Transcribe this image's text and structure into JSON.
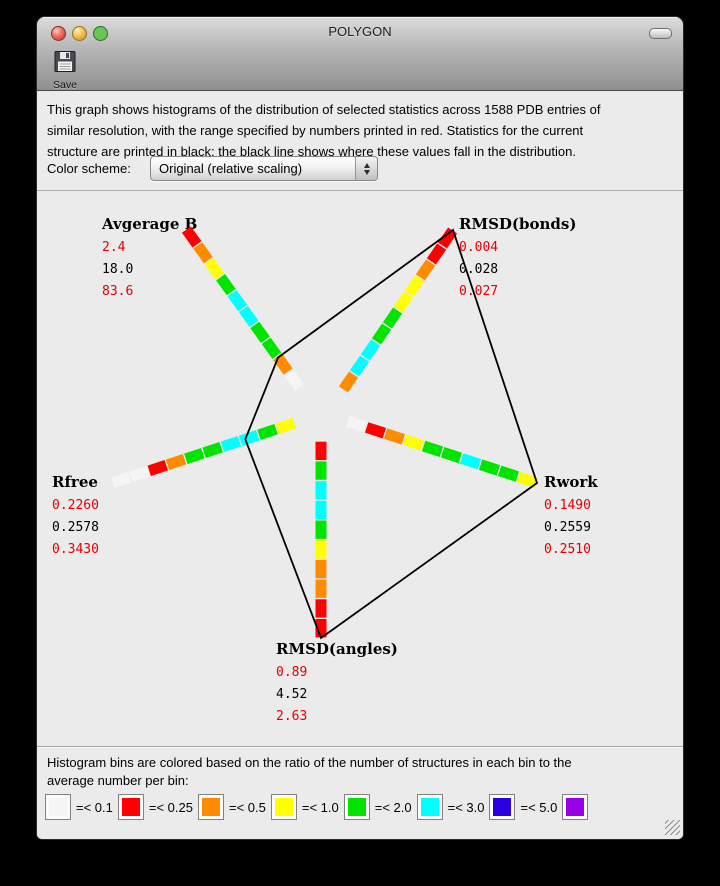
{
  "window": {
    "title": "POLYGON"
  },
  "toolbar": {
    "save_label": "Save"
  },
  "description": {
    "lines": [
      "This graph shows histograms of the distribution of selected statistics across 1588 PDB entries of",
      "similar resolution, with the range specified by numbers printed in red.  Statistics for the current",
      "structure are printed in black; the black line shows where these values fall in the distribution."
    ]
  },
  "color_scheme": {
    "label": "Color scheme:",
    "selected": "Original (relative scaling)"
  },
  "chart_data": {
    "type": "polygon-radar-histogram",
    "entries_count": 1588,
    "bin_colors": {
      "white": "#f5f5f5",
      "red": "#ff0000",
      "orange": "#ff8c00",
      "yellow": "#ffff00",
      "green": "#00e400",
      "cyan": "#00ffff",
      "blue": "#2a00e0",
      "purple": "#9a00e6"
    },
    "axes": [
      {
        "name": "Avgerage B",
        "min": 2.4,
        "value": 18.0,
        "max": 83.6,
        "min_str": "2.4",
        "value_str": "18.0",
        "max_str": "83.6",
        "bins_inner_to_tip": [
          "white",
          "orange",
          "green",
          "green",
          "cyan",
          "cyan",
          "green",
          "yellow",
          "orange",
          "red"
        ]
      },
      {
        "name": "RMSD(bonds)",
        "min": 0.004,
        "value": 0.028,
        "max": 0.027,
        "min_str": "0.004",
        "value_str": "0.028",
        "max_str": "0.027",
        "bins_inner_to_tip": [
          "orange",
          "cyan",
          "cyan",
          "green",
          "green",
          "yellow",
          "yellow",
          "orange",
          "red",
          "red"
        ]
      },
      {
        "name": "Rwork",
        "min": 0.149,
        "value": 0.2559,
        "max": 0.251,
        "min_str": "0.1490",
        "value_str": "0.2559",
        "max_str": "0.2510",
        "bins_inner_to_tip": [
          "white",
          "red",
          "orange",
          "yellow",
          "green",
          "green",
          "cyan",
          "green",
          "green",
          "yellow"
        ]
      },
      {
        "name": "RMSD(angles)",
        "min": 0.89,
        "value": 4.52,
        "max": 2.63,
        "min_str": "0.89",
        "value_str": "4.52",
        "max_str": "2.63",
        "bins_inner_to_tip": [
          "red",
          "green",
          "cyan",
          "cyan",
          "green",
          "yellow",
          "orange",
          "orange",
          "red",
          "red"
        ]
      },
      {
        "name": "Rfree",
        "min": 0.226,
        "value": 0.2578,
        "max": 0.343,
        "min_str": "0.2260",
        "value_str": "0.2578",
        "max_str": "0.3430",
        "bins_inner_to_tip": [
          "yellow",
          "green",
          "cyan",
          "cyan",
          "green",
          "green",
          "orange",
          "red",
          "white",
          "white"
        ]
      }
    ]
  },
  "legend": {
    "lines": [
      "Histogram bins are colored based on the ratio of the number of structures in each bin to the",
      "average number per bin:"
    ],
    "bins": [
      {
        "color": "#f5f5f5",
        "label": "=< 0.1"
      },
      {
        "color": "#ff0000",
        "label": "=< 0.25"
      },
      {
        "color": "#ff8c00",
        "label": "=< 0.5"
      },
      {
        "color": "#ffff00",
        "label": "=< 1.0"
      },
      {
        "color": "#00e400",
        "label": "=< 2.0"
      },
      {
        "color": "#00ffff",
        "label": "=< 3.0"
      },
      {
        "color": "#2a00e0",
        "label": "=< 5.0"
      },
      {
        "color": "#9a00e6",
        "label": ""
      }
    ]
  }
}
